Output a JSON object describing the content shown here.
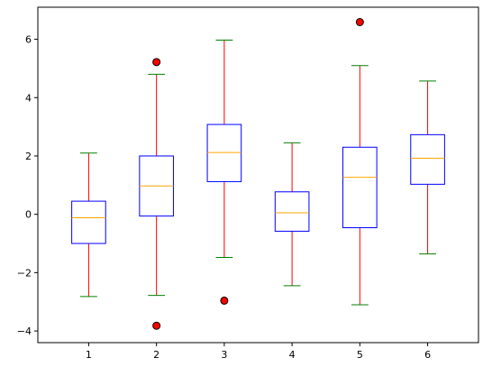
{
  "chart_data": {
    "type": "box",
    "title": "",
    "xlabel": "",
    "ylabel": "",
    "categories": [
      "1",
      "2",
      "3",
      "4",
      "5",
      "6"
    ],
    "ylim": [
      -4.4,
      7.1
    ],
    "yticks": [
      -4,
      -2,
      0,
      2,
      4,
      6
    ],
    "ytick_labels": [
      "−4",
      "−2",
      "0",
      "2",
      "4",
      "6"
    ],
    "grid": false,
    "boxes": [
      {
        "category": "1",
        "whisker_low": -2.82,
        "q1": -1.0,
        "median": -0.12,
        "q3": 0.45,
        "whisker_high": 2.1,
        "outliers": []
      },
      {
        "category": "2",
        "whisker_low": -2.78,
        "q1": -0.06,
        "median": 0.97,
        "q3": 2.0,
        "whisker_high": 4.8,
        "outliers": [
          5.22,
          -3.82
        ]
      },
      {
        "category": "3",
        "whisker_low": -1.48,
        "q1": 1.12,
        "median": 2.12,
        "q3": 3.08,
        "whisker_high": 5.97,
        "outliers": [
          -2.96
        ]
      },
      {
        "category": "4",
        "whisker_low": -2.45,
        "q1": -0.58,
        "median": 0.05,
        "q3": 0.77,
        "whisker_high": 2.45,
        "outliers": []
      },
      {
        "category": "5",
        "whisker_low": -3.1,
        "q1": -0.46,
        "median": 1.27,
        "q3": 2.3,
        "whisker_high": 5.1,
        "outliers": [
          6.59
        ]
      },
      {
        "category": "6",
        "whisker_low": -1.36,
        "q1": 1.03,
        "median": 1.92,
        "q3": 2.73,
        "whisker_high": 4.57,
        "outliers": []
      }
    ],
    "colors": {
      "box": "#0000ff",
      "whisker": "#ff0000",
      "cap": "#008000",
      "median": "#ffa500",
      "outlier_fill": "#ff0000",
      "outlier_edge": "#000000"
    }
  }
}
